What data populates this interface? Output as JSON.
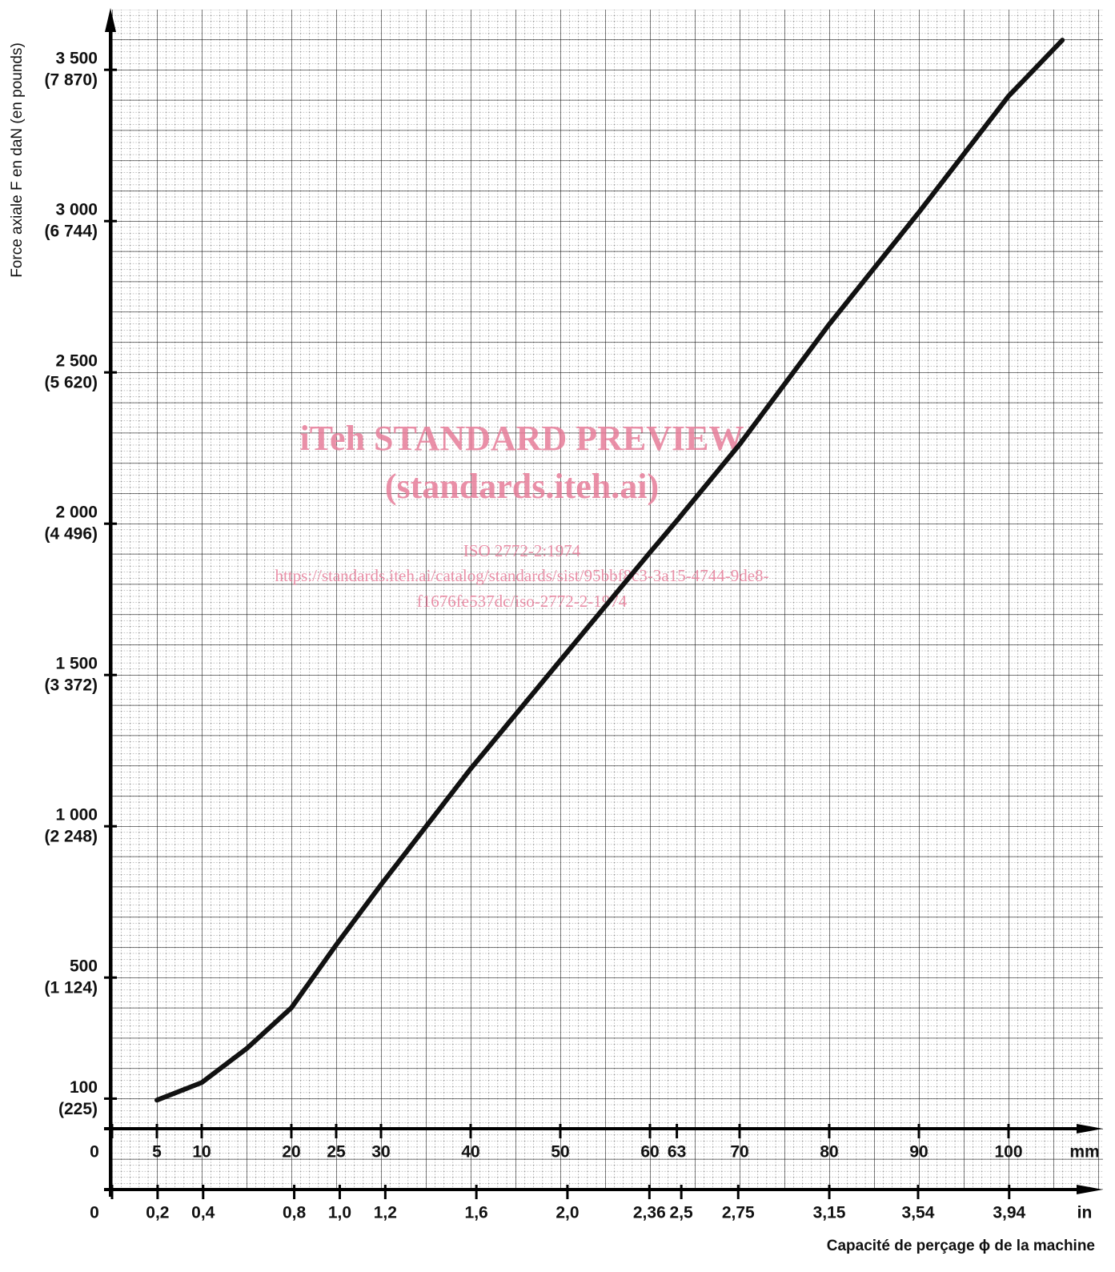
{
  "chart_data": {
    "type": "line",
    "x_label": "Capacité de perçage ϕ de la machine",
    "y_label": "Force axiale F en daN (en pounds)",
    "x_unit": "mm",
    "x2_unit": "in",
    "x": [
      5,
      10,
      15,
      20,
      25,
      30,
      40,
      50,
      60,
      63,
      70,
      80,
      90,
      100,
      106
    ],
    "series": [
      {
        "color": "#111111",
        "values": [
          95,
          153,
          265,
          400,
          608,
          807,
          1190,
          1548,
          1905,
          2010,
          2262,
          2659,
          3029,
          3413,
          3598
        ]
      }
    ],
    "xlim": [
      0,
      110
    ],
    "xticks": [
      0,
      5,
      10,
      20,
      25,
      30,
      40,
      50,
      60,
      63,
      70,
      80,
      90,
      100
    ],
    "x2lim": [
      0,
      4.331
    ],
    "x2ticks": [
      0,
      {
        "value": 0.2,
        "label": "0,2"
      },
      {
        "value": 0.4,
        "label": "0,4"
      },
      {
        "value": 0.8,
        "label": "0,8"
      },
      {
        "value": 1.0,
        "label": "1,0"
      },
      {
        "value": 1.2,
        "label": "1,2"
      },
      {
        "value": 1.6,
        "label": "1,6"
      },
      {
        "value": 2.0,
        "label": "2,0"
      },
      {
        "value": 2.36,
        "label": "2,36"
      },
      {
        "value": 2.5,
        "label": "2,5"
      },
      {
        "value": 2.75,
        "label": "2,75"
      },
      {
        "value": 3.15,
        "label": "3,15"
      },
      {
        "value": 3.54,
        "label": "3,54"
      },
      {
        "value": 3.94,
        "label": "3,94"
      }
    ],
    "ylim": [
      -200,
      3700
    ],
    "yticks": [
      {
        "value": 100,
        "label": "100"
      },
      {
        "value": 500,
        "label": "500"
      },
      {
        "value": 1000,
        "label": "1 000"
      },
      {
        "value": 1500,
        "label": "1 500"
      },
      {
        "value": 2000,
        "label": "2 000"
      },
      {
        "value": 2500,
        "label": "2 500"
      },
      {
        "value": 3000,
        "label": "3 000"
      },
      {
        "value": 3500,
        "label": "3 500"
      }
    ],
    "ytick_pound_labels": [
      "(225)",
      "(1 124)",
      "(2 248)",
      "(3 372)",
      "(4 496)",
      "(5 620)",
      "(6 744)",
      "(7 870)"
    ],
    "annotations": [
      "iTeh STANDARD PREVIEW",
      "(standards.iteh.ai)",
      "ISO 2772-2:1974",
      "https://standards.iteh.ai/catalog/standards/sist/95bbf8c3-3a15-4744-9de8-",
      "f1676fe537dc/iso-2772-2-1974"
    ]
  }
}
